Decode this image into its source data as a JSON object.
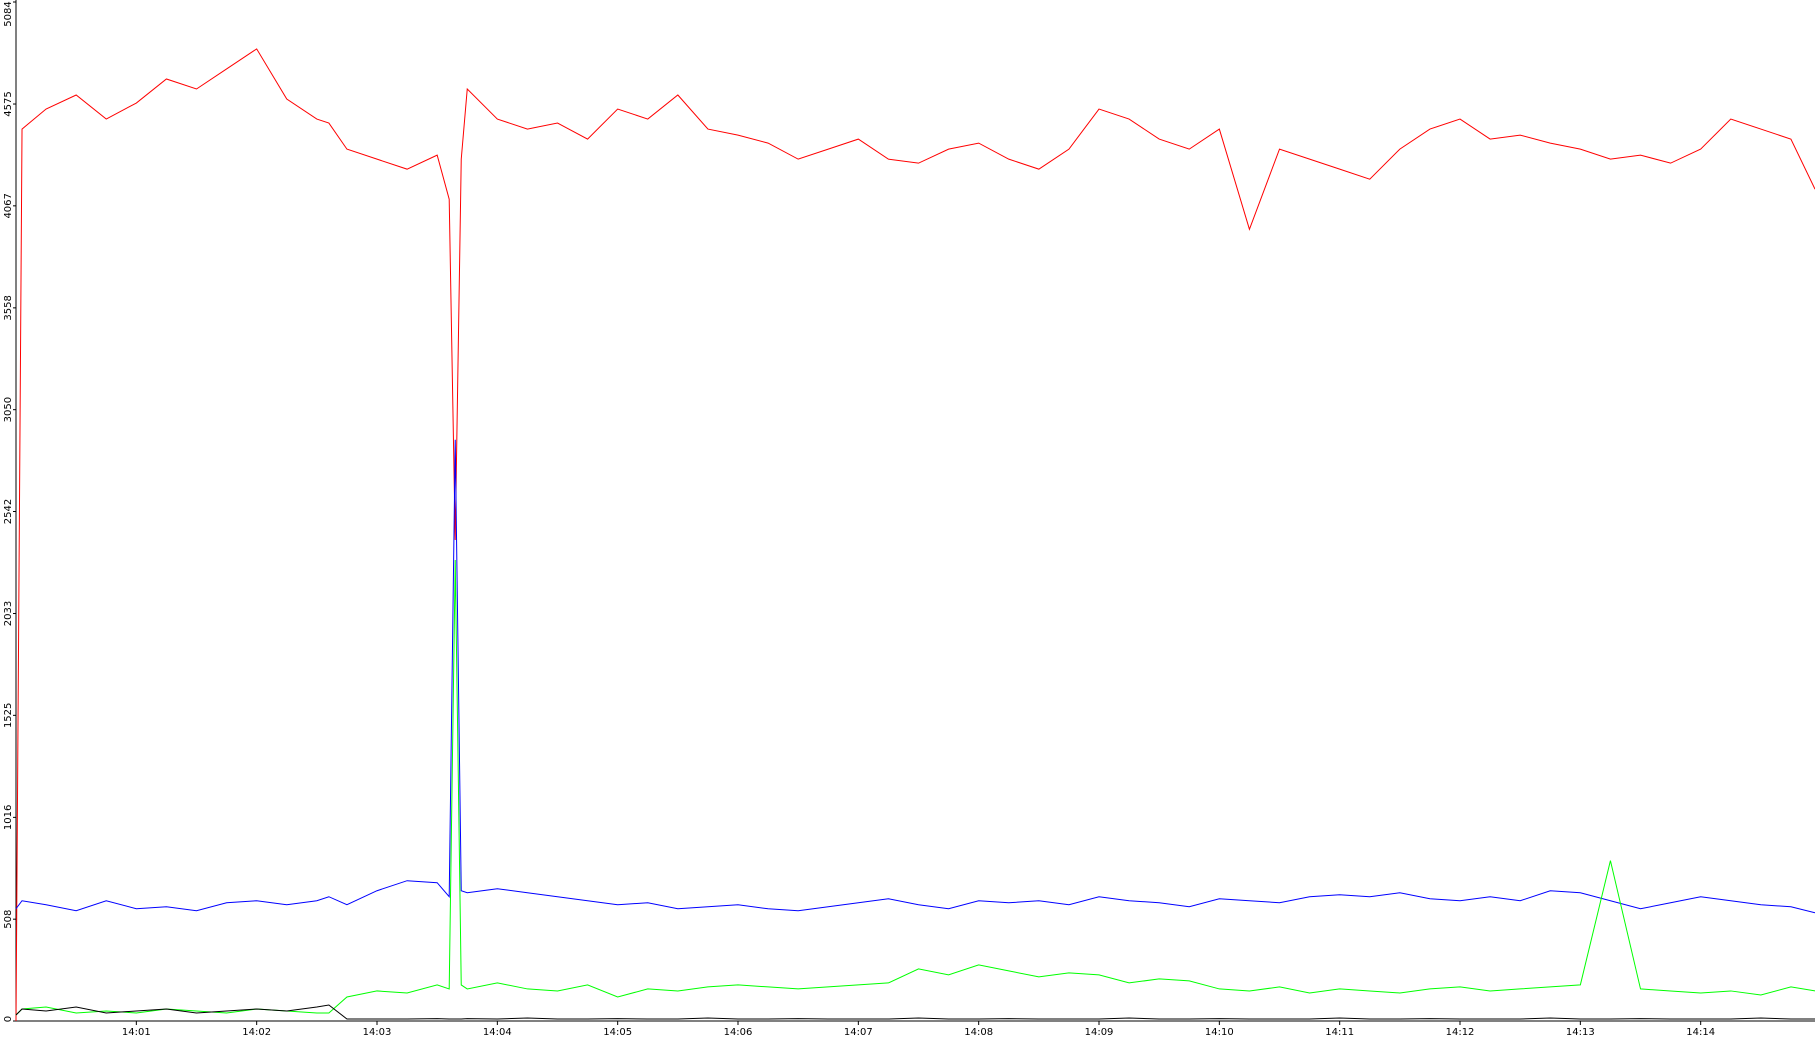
{
  "chart_data": {
    "type": "line",
    "x": [
      0,
      0.05,
      0.25,
      0.5,
      0.75,
      1,
      1.25,
      1.5,
      1.75,
      2,
      2.25,
      2.5,
      2.6,
      2.75,
      3,
      3.25,
      3.5,
      3.6,
      3.65,
      3.7,
      3.75,
      4,
      4.25,
      4.5,
      4.75,
      5,
      5.25,
      5.5,
      5.75,
      6,
      6.25,
      6.5,
      6.75,
      7,
      7.25,
      7.5,
      7.75,
      8,
      8.25,
      8.5,
      8.75,
      9,
      9.25,
      9.5,
      9.75,
      10,
      10.25,
      10.5,
      10.75,
      11,
      11.25,
      11.5,
      11.75,
      12,
      12.25,
      12.5,
      12.75,
      13,
      13.25,
      13.5,
      13.75,
      14,
      14.25,
      14.5,
      14.75,
      14.95
    ],
    "series": [
      {
        "color": "#ff0000",
        "values": [
          0,
          4450,
          4550,
          4620,
          4500,
          4580,
          4700,
          4650,
          4750,
          4850,
          4600,
          4500,
          4480,
          4350,
          4300,
          4250,
          4320,
          4100,
          2400,
          4300,
          4650,
          4500,
          4450,
          4480,
          4400,
          4550,
          4500,
          4620,
          4450,
          4420,
          4380,
          4300,
          4350,
          4400,
          4300,
          4280,
          4350,
          4380,
          4300,
          4250,
          4350,
          4550,
          4500,
          4400,
          4350,
          4450,
          3950,
          4350,
          4300,
          4250,
          4200,
          4350,
          4450,
          4500,
          4400,
          4420,
          4380,
          4350,
          4300,
          4320,
          4280,
          4350,
          4500,
          4450,
          4400,
          4150
        ]
      },
      {
        "color": "#0000ff",
        "values": [
          560,
          600,
          580,
          550,
          600,
          560,
          570,
          550,
          590,
          600,
          580,
          600,
          620,
          580,
          650,
          700,
          690,
          620,
          2900,
          650,
          640,
          660,
          640,
          620,
          600,
          580,
          590,
          560,
          570,
          580,
          560,
          550,
          570,
          590,
          610,
          580,
          560,
          600,
          590,
          600,
          580,
          620,
          600,
          590,
          570,
          610,
          600,
          590,
          620,
          630,
          620,
          640,
          610,
          600,
          620,
          600,
          650,
          640,
          600,
          560,
          590,
          620,
          600,
          580,
          570,
          540
        ]
      },
      {
        "color": "#00ff00",
        "values": [
          30,
          60,
          70,
          40,
          50,
          40,
          60,
          50,
          40,
          60,
          50,
          40,
          40,
          120,
          150,
          140,
          180,
          160,
          2300,
          180,
          160,
          190,
          160,
          150,
          180,
          120,
          160,
          150,
          170,
          180,
          170,
          160,
          170,
          180,
          190,
          260,
          230,
          280,
          250,
          220,
          240,
          230,
          190,
          210,
          200,
          160,
          150,
          170,
          140,
          160,
          150,
          140,
          160,
          170,
          150,
          160,
          170,
          180,
          800,
          160,
          150,
          140,
          150,
          130,
          170,
          150
        ]
      },
      {
        "color": "#000000",
        "values": [
          30,
          60,
          50,
          70,
          40,
          50,
          60,
          40,
          50,
          60,
          50,
          70,
          80,
          10,
          10,
          10,
          12,
          10,
          10,
          10,
          12,
          10,
          15,
          10,
          10,
          12,
          10,
          10,
          15,
          10,
          10,
          12,
          10,
          10,
          10,
          15,
          10,
          10,
          12,
          10,
          10,
          10,
          15,
          10,
          10,
          12,
          10,
          10,
          10,
          15,
          10,
          10,
          12,
          10,
          10,
          10,
          15,
          10,
          10,
          12,
          10,
          10,
          10,
          15,
          10,
          10
        ]
      }
    ],
    "xlim": [
      0,
      14.95
    ],
    "xticks": [
      {
        "value": 1,
        "label": "14:01"
      },
      {
        "value": 2,
        "label": "14:02"
      },
      {
        "value": 3,
        "label": "14:03"
      },
      {
        "value": 4,
        "label": "14:04"
      },
      {
        "value": 5,
        "label": "14:05"
      },
      {
        "value": 6,
        "label": "14:06"
      },
      {
        "value": 7,
        "label": "14:07"
      },
      {
        "value": 8,
        "label": "14:08"
      },
      {
        "value": 9,
        "label": "14:09"
      },
      {
        "value": 10,
        "label": "14:10"
      },
      {
        "value": 11,
        "label": "14:11"
      },
      {
        "value": 12,
        "label": "14:12"
      },
      {
        "value": 13,
        "label": "14:13"
      },
      {
        "value": 14,
        "label": "14:14"
      }
    ],
    "ylim": [
      0,
      5084
    ],
    "yticks": [
      0,
      508,
      1016,
      1525,
      2033,
      2542,
      3050,
      3558,
      4067,
      4575,
      5084
    ],
    "grid": false
  }
}
